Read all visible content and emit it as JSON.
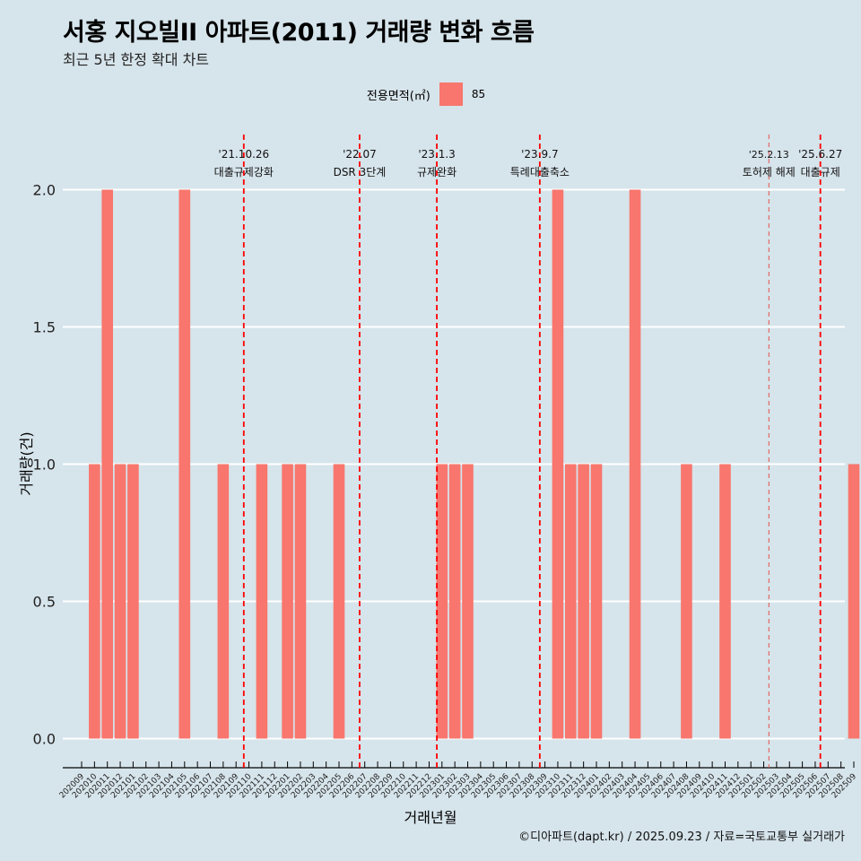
{
  "title": "서홍 지오빌II 아파트(2011) 거래량 변화 흐름",
  "subtitle": "최근 5년 한정 확대 차트",
  "caption": "©디아파트(dapt.kr) / 2025.09.23 / 자료=국토교통부 실거래가",
  "legend": {
    "title": "전용면적(㎡)",
    "label": "85",
    "color": "#f8766d"
  },
  "chart_data": {
    "type": "bar",
    "xlabel": "거래년월",
    "ylabel": "거래량(건)",
    "ylim": [
      0,
      2
    ],
    "yticks": [
      0.0,
      0.5,
      1.0,
      1.5,
      2.0
    ],
    "ytick_labels": [
      "0.0",
      "0.5",
      "1.0",
      "1.5",
      "2.0"
    ],
    "grid": true,
    "legend_position": "top",
    "categories": [
      "202009",
      "202010",
      "202011",
      "202012",
      "202101",
      "202102",
      "202103",
      "202104",
      "202105",
      "202106",
      "202107",
      "202108",
      "202109",
      "202110",
      "202111",
      "202112",
      "202201",
      "202202",
      "202203",
      "202204",
      "202205",
      "202206",
      "202207",
      "202208",
      "202209",
      "202210",
      "202211",
      "202212",
      "202301",
      "202302",
      "202303",
      "202304",
      "202305",
      "202306",
      "202307",
      "202308",
      "202309",
      "202310",
      "202311",
      "202312",
      "202401",
      "202402",
      "202403",
      "202404",
      "202405",
      "202406",
      "202407",
      "202408",
      "202409",
      "202410",
      "202411",
      "202412",
      "202501",
      "202502",
      "202503",
      "202504",
      "202505",
      "202506",
      "202507",
      "202508",
      "202509"
    ],
    "series": [
      {
        "name": "85",
        "color": "#f8766d",
        "values": [
          0,
          1,
          2,
          1,
          1,
          0,
          0,
          0,
          2,
          0,
          0,
          1,
          0,
          0,
          1,
          0,
          1,
          1,
          0,
          0,
          1,
          0,
          0,
          0,
          0,
          0,
          0,
          0,
          1,
          1,
          1,
          0,
          0,
          0,
          0,
          0,
          0,
          2,
          1,
          1,
          1,
          0,
          0,
          2,
          0,
          0,
          0,
          1,
          0,
          0,
          1,
          0,
          0,
          0,
          0,
          0,
          0,
          0,
          0,
          0,
          1
        ]
      }
    ],
    "annotations": [
      {
        "x": 12.6,
        "date": "'21.10.26",
        "label": "대출규제강화",
        "style": "dashed"
      },
      {
        "x": 21.6,
        "date": "'22.07",
        "label": "DSR 3단계",
        "style": "dashed"
      },
      {
        "x": 27.6,
        "date": "'23.1.3",
        "label": "규제완화",
        "style": "dashed"
      },
      {
        "x": 35.6,
        "date": "'23.9.7",
        "label": "특례대출축소",
        "style": "dashed"
      },
      {
        "x": 53.4,
        "date": "'25.2.13",
        "label": "토허제 해제",
        "style": "thin-dashed"
      },
      {
        "x": 57.4,
        "date": "'25.6.27",
        "label": "대출규제",
        "style": "dashed"
      }
    ]
  }
}
